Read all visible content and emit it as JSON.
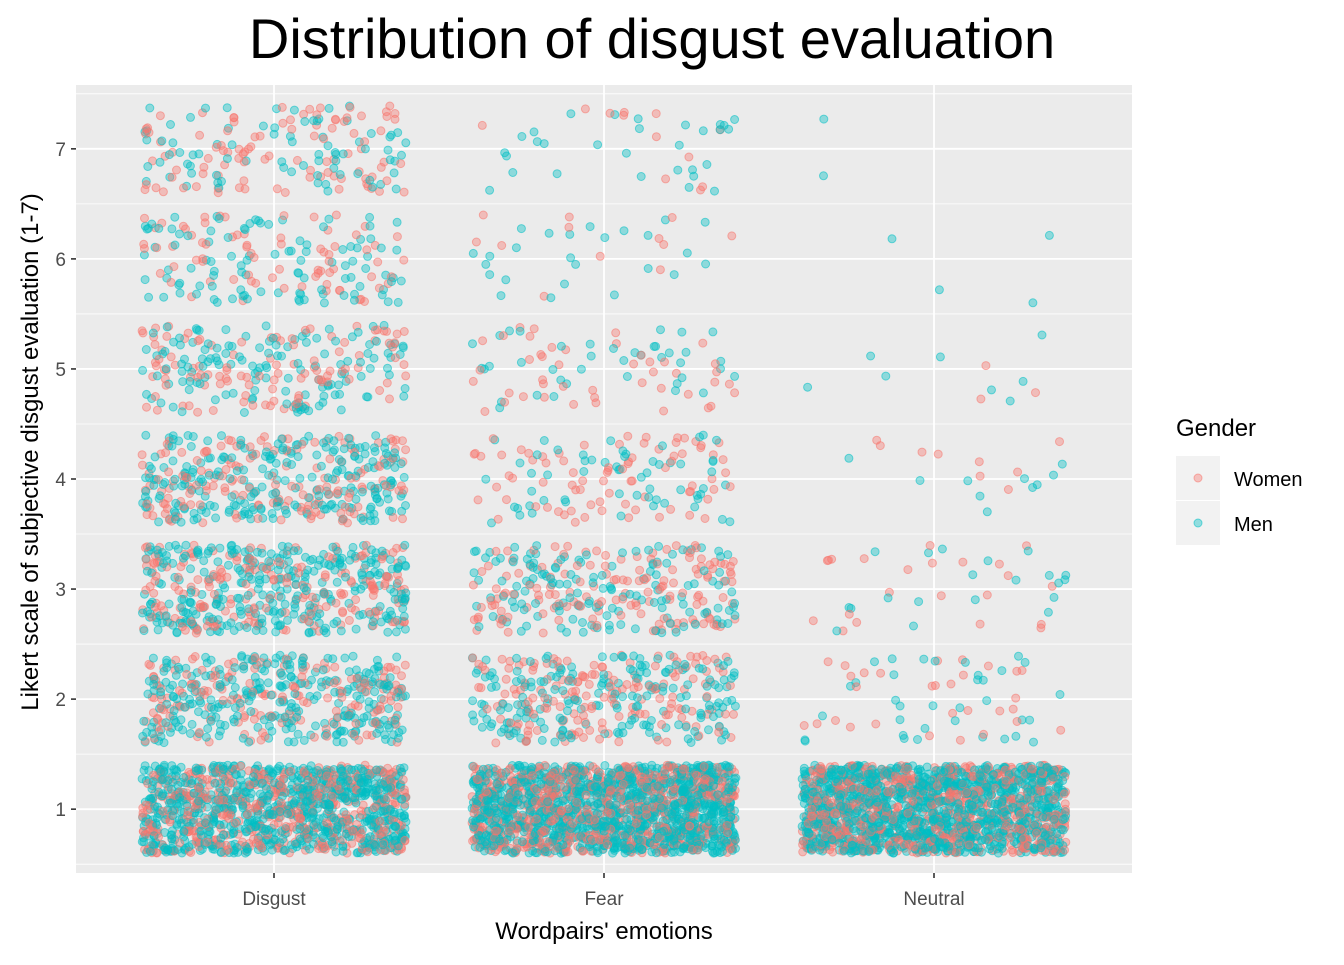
{
  "chart_data": {
    "type": "scatter",
    "title": "Distribution of disgust evaluation",
    "xlabel": "Wordpairs' emotions",
    "ylabel": "Likert scale of subjective disgust evaluation (1-7)",
    "categories": [
      "Disgust",
      "Fear",
      "Neutral"
    ],
    "y_ticks": [
      1,
      2,
      3,
      4,
      5,
      6,
      7
    ],
    "y_ticklabels": [
      "1",
      "2",
      "3",
      "4",
      "5",
      "6",
      "7"
    ],
    "ylim": [
      0.42,
      7.58
    ],
    "jitter": {
      "x": 0.4,
      "y": 0.4
    },
    "grid": true,
    "legend": {
      "title": "Gender",
      "position": "right",
      "entries": [
        "Women",
        "Men"
      ]
    },
    "series": [
      {
        "name": "Women",
        "color": "#F8766D",
        "counts": {
          "Disgust": {
            "1": 500,
            "2": 180,
            "3": 210,
            "4": 170,
            "5": 110,
            "6": 75,
            "7": 100
          },
          "Fear": {
            "1": 700,
            "2": 170,
            "3": 150,
            "4": 80,
            "5": 45,
            "6": 12,
            "7": 12
          },
          "Neutral": {
            "1": 700,
            "2": 30,
            "3": 22,
            "4": 9,
            "5": 3,
            "6": 0,
            "7": 0
          }
        }
      },
      {
        "name": "Men",
        "color": "#00BFC4",
        "counts": {
          "Disgust": {
            "1": 800,
            "2": 300,
            "3": 320,
            "4": 250,
            "5": 140,
            "6": 105,
            "7": 80
          },
          "Fear": {
            "1": 1200,
            "2": 200,
            "3": 150,
            "4": 60,
            "5": 40,
            "6": 25,
            "7": 30
          },
          "Neutral": {
            "1": 1200,
            "2": 35,
            "3": 20,
            "4": 10,
            "5": 8,
            "6": 4,
            "7": 2
          }
        }
      }
    ]
  }
}
